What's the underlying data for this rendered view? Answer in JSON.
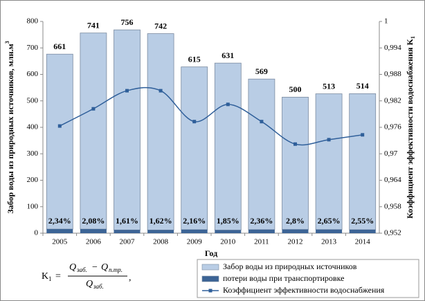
{
  "chart_data": {
    "type": "bar",
    "categories": [
      "2005",
      "2006",
      "2007",
      "2008",
      "2009",
      "2010",
      "2011",
      "2012",
      "2013",
      "2014"
    ],
    "series": [
      {
        "name": "потери воды при транспортировке",
        "color": "#3c6496",
        "values": [
          15.5,
          15.4,
          12.2,
          12.0,
          13.3,
          11.7,
          13.4,
          14.0,
          13.6,
          13.1
        ]
      },
      {
        "name": "Забор воды из природных источников",
        "color": "#b9cde5",
        "values": [
          661,
          741,
          756,
          742,
          615,
          631,
          569,
          500,
          513,
          514
        ]
      },
      {
        "name": "Коэффициент эффективности водоснабжения",
        "color": "#2f5f9a",
        "axis": "y2",
        "values": [
          0.9763,
          0.9802,
          0.9843,
          0.9843,
          0.9773,
          0.9812,
          0.9773,
          0.9722,
          0.9732,
          0.9743
        ]
      }
    ],
    "loss_share_labels": [
      "2,34%",
      "2,08%",
      "1,61%",
      "1,62%",
      "2,16%",
      "1,85%",
      "2,36%",
      "2,8%",
      "2,65%",
      "2,55%"
    ],
    "legend_order": [
      1,
      0,
      2
    ],
    "x_label": "Год",
    "y_label": "Забор воды из природных источников, млн.м",
    "y_label_sup": "3",
    "y2_label": "Коэффициент эффективности водоснабжения K",
    "y2_label_sub": "1",
    "ylim": [
      0,
      800
    ],
    "yticks": [
      0,
      100,
      200,
      300,
      400,
      500,
      600,
      700,
      800
    ],
    "y2lim": [
      0.952,
      1
    ],
    "y2ticks": [
      {
        "value": 0.952,
        "label": "0,952"
      },
      {
        "value": 0.958,
        "label": "0,958"
      },
      {
        "value": 0.964,
        "label": "0,964"
      },
      {
        "value": 0.97,
        "label": "0,97"
      },
      {
        "value": 0.976,
        "label": "0,976"
      },
      {
        "value": 0.982,
        "label": "0,982"
      },
      {
        "value": 0.988,
        "label": "0,988"
      },
      {
        "value": 0.994,
        "label": "0,994"
      },
      1
    ],
    "formula": {
      "k": "K",
      "k_sub": "1",
      "eq": "=",
      "q": "Q",
      "sub_w": "заб.",
      "minus": "−",
      "sub_l": "п.тр.",
      "comma": ","
    }
  }
}
